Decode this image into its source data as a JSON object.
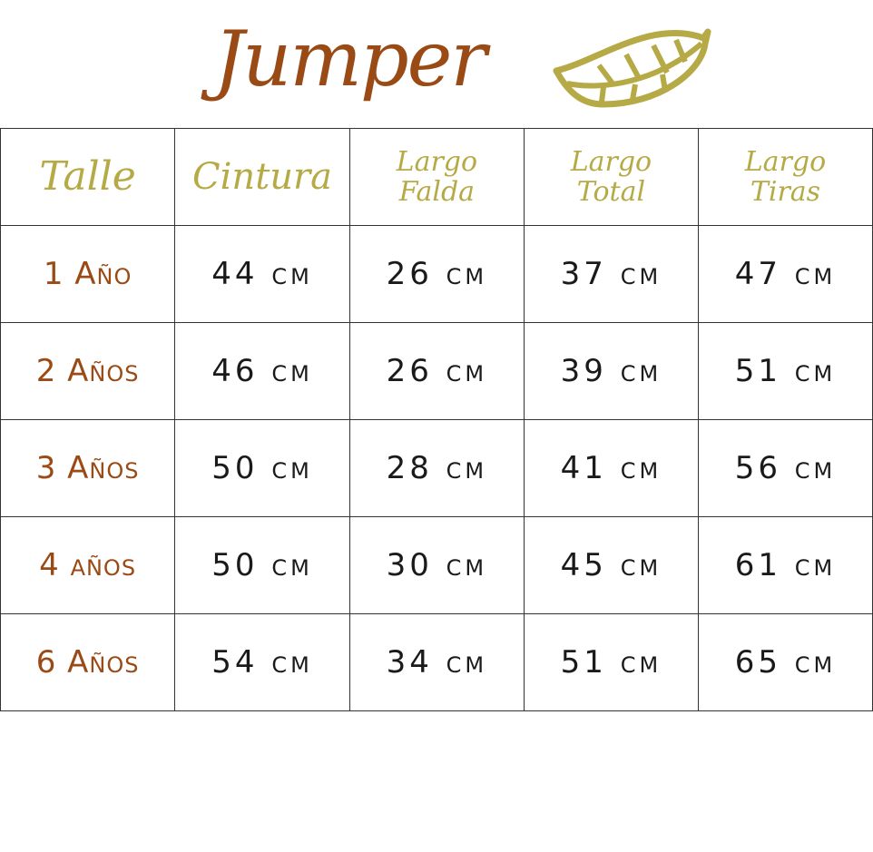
{
  "title": "Jumper",
  "colors": {
    "title": "#9a4a14",
    "header": "#b5aa45",
    "leaf": "#b5aa45",
    "size_label": "#9a4a14"
  },
  "icon": "leaf-icon",
  "headers": [
    {
      "lines": [
        "Talle"
      ]
    },
    {
      "lines": [
        "Cintura"
      ]
    },
    {
      "lines": [
        "Largo",
        "Falda"
      ]
    },
    {
      "lines": [
        "Largo",
        "Total"
      ]
    },
    {
      "lines": [
        "Largo",
        "Tiras"
      ]
    }
  ],
  "rows": [
    {
      "size": "1 Año",
      "cells": [
        "44 cm",
        "26 cm",
        "37 cm",
        "47 cm"
      ]
    },
    {
      "size": "2 Años",
      "cells": [
        "46 cm",
        "26 cm",
        "39 cm",
        "51 cm"
      ]
    },
    {
      "size": "3 Años",
      "cells": [
        "50 cm",
        "28 cm",
        "41 cm",
        "56 cm"
      ]
    },
    {
      "size": "4 años",
      "cells": [
        "50 cm",
        "30 cm",
        "45 cm",
        "61 cm"
      ]
    },
    {
      "size": "6 Años",
      "cells": [
        "54 cm",
        "34 cm",
        "51 cm",
        "65 cm"
      ]
    }
  ]
}
